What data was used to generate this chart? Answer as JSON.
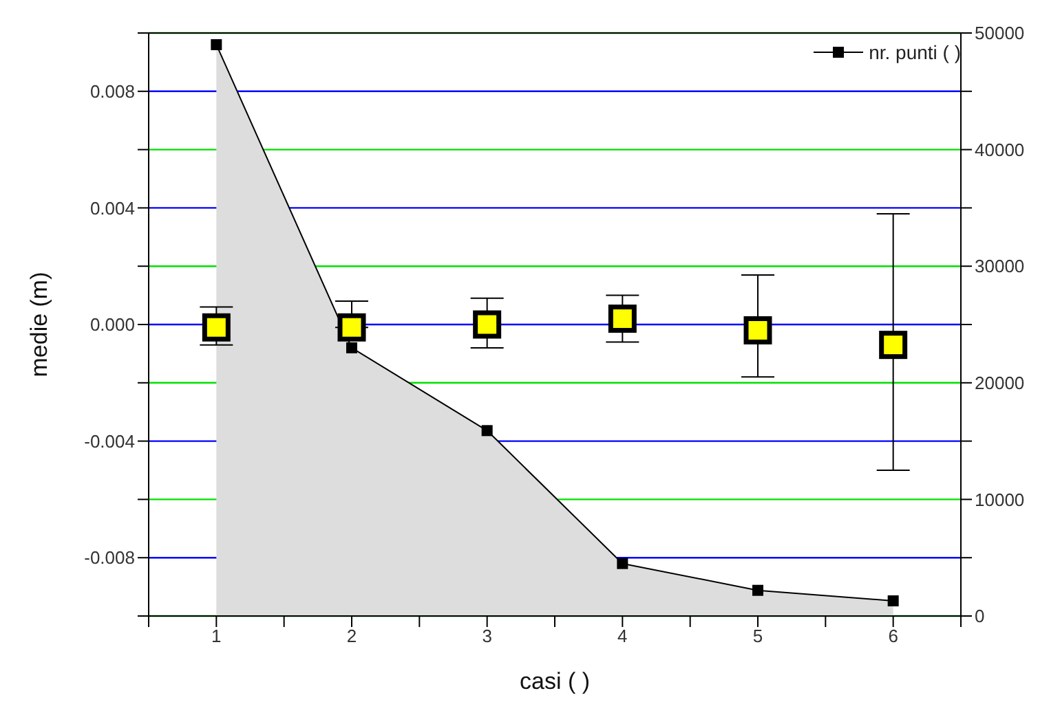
{
  "chart_data": {
    "type": "scatter",
    "xlabel": "casi ( )",
    "ylabel": "medie (m)",
    "x": [
      1,
      2,
      3,
      4,
      5,
      6
    ],
    "xlim": [
      0.5,
      6.5
    ],
    "xticks": [
      {
        "value": 0.5,
        "label": null
      },
      1,
      {
        "value": 1.5,
        "label": null
      },
      2,
      {
        "value": 2.5,
        "label": null
      },
      3,
      {
        "value": 3.5,
        "label": null
      },
      4,
      {
        "value": 4.5,
        "label": null
      },
      5,
      {
        "value": 5.5,
        "label": null
      },
      6,
      {
        "value": 6.5,
        "label": null
      }
    ],
    "ylim": [
      -0.01,
      0.01
    ],
    "yticks": [
      {
        "value": -0.01,
        "label": null
      },
      -0.008,
      {
        "value": -0.006,
        "label": null
      },
      -0.004,
      {
        "value": -0.002,
        "label": null
      },
      {
        "value": 0,
        "label": "0.000"
      },
      {
        "value": 0.002,
        "label": null
      },
      0.004,
      {
        "value": 0.006,
        "label": null
      },
      0.008,
      {
        "value": 0.01,
        "label": null
      }
    ],
    "y2lim": [
      0,
      50000
    ],
    "y2ticks": [
      0,
      {
        "value": 5000,
        "label": null
      },
      10000,
      {
        "value": 15000,
        "label": null
      },
      20000,
      {
        "value": 25000,
        "label": null
      },
      30000,
      {
        "value": 35000,
        "label": null
      },
      40000,
      {
        "value": 45000,
        "label": null
      },
      50000
    ],
    "grid": "y",
    "legend": "top right",
    "series": [
      {
        "name": "nr. punti ( )",
        "type": "area",
        "axis": "y2",
        "color": "#dddddd",
        "marker": "square",
        "values": [
          49000,
          23000,
          15900,
          4500,
          2200,
          1300
        ]
      },
      {
        "color": "#ffff00",
        "marker": "square",
        "values": [
          -0.0001,
          -0.0001,
          0.0,
          0.0002,
          -0.0002,
          -0.0007
        ],
        "errors": [
          [
            -0.0007,
            0.0006
          ],
          [
            -0.0001,
            0.0008
          ],
          [
            -0.0008,
            0.0009
          ],
          [
            -0.0006,
            0.001
          ],
          [
            -0.0018,
            0.0017
          ],
          [
            -0.005,
            0.0038
          ]
        ]
      }
    ]
  }
}
